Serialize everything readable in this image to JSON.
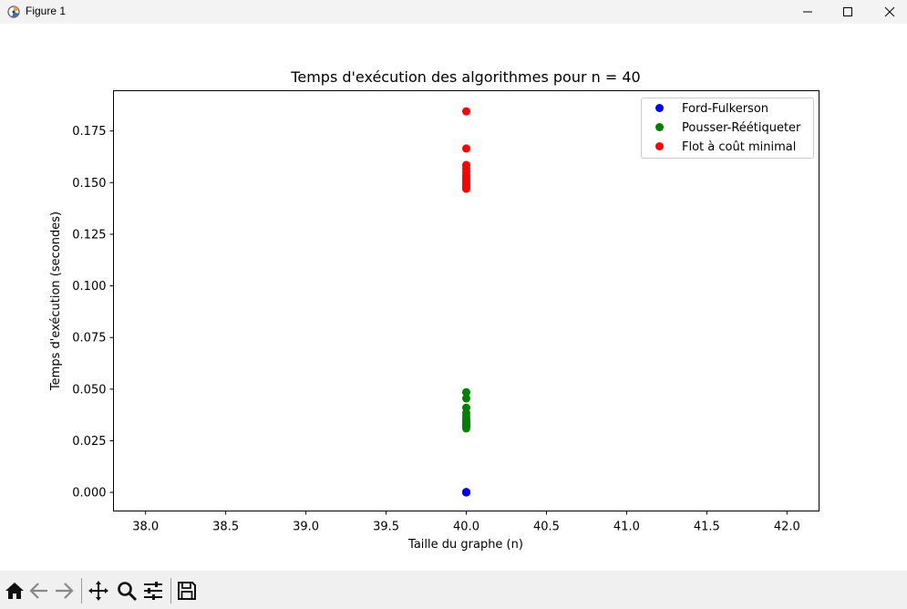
{
  "window": {
    "title": "Figure 1"
  },
  "toolbar": {
    "icons": [
      "home-icon",
      "back-arrow-icon",
      "forward-arrow-icon",
      "pan-icon",
      "zoom-icon",
      "configure-subplots-icon",
      "save-icon"
    ]
  },
  "chart_data": {
    "type": "scatter",
    "title": "Temps d'exécution des algorithmes pour n = 40",
    "xlabel": "Taille du graphe (n)",
    "ylabel": "Temps d'exécution (secondes)",
    "xlim": [
      37.8,
      42.2
    ],
    "ylim": [
      -0.009,
      0.1945
    ],
    "xticks": [
      "38.0",
      "38.5",
      "39.0",
      "39.5",
      "40.0",
      "40.5",
      "41.0",
      "41.5",
      "42.0"
    ],
    "yticks": [
      "0.000",
      "0.025",
      "0.050",
      "0.075",
      "0.100",
      "0.125",
      "0.150",
      "0.175"
    ],
    "grid": false,
    "legend_position": "top-right",
    "series": [
      {
        "name": "Ford-Fulkerson",
        "color": "#0000ff",
        "x": [
          40,
          40,
          40,
          40,
          40
        ],
        "y": [
          0.0,
          0.0001,
          0.0001,
          0.0002,
          0.0
        ]
      },
      {
        "name": "Pousser-Réétiqueter",
        "color": "#008000",
        "x": [
          40,
          40,
          40,
          40,
          40,
          40,
          40,
          40,
          40,
          40,
          40,
          40
        ],
        "y": [
          0.0485,
          0.0455,
          0.041,
          0.0385,
          0.037,
          0.0355,
          0.034,
          0.033,
          0.032,
          0.031,
          0.0325,
          0.0345
        ]
      },
      {
        "name": "Flot à coût minimal",
        "color": "#ff0000",
        "x": [
          40,
          40,
          40,
          40,
          40,
          40,
          40,
          40,
          40,
          40,
          40,
          40,
          40
        ],
        "y": [
          0.1845,
          0.1665,
          0.1585,
          0.157,
          0.1555,
          0.154,
          0.153,
          0.152,
          0.151,
          0.15,
          0.149,
          0.148,
          0.147
        ]
      }
    ]
  }
}
